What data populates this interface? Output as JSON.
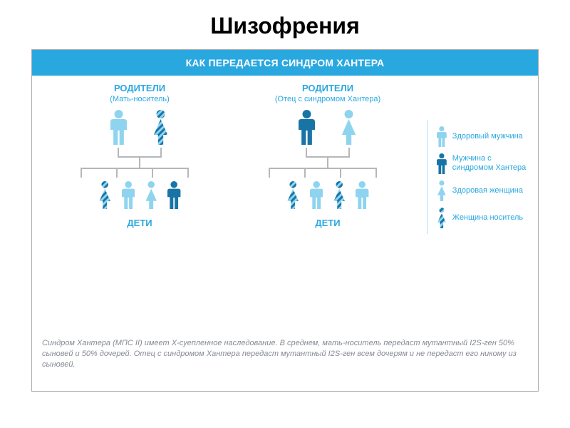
{
  "title": "Шизофрения",
  "banner": "КАК ПЕРЕДАЕТСЯ СИНДРОМ ХАНТЕРА",
  "colors": {
    "brand": "#29a8e0",
    "light": "#8fd4ef",
    "dark": "#1974a6",
    "gray": "#b5b7ba",
    "white": "#ffffff",
    "textgray": "#868b92"
  },
  "leftTree": {
    "parentsLabel": "РОДИТЕЛИ",
    "parentsSub": "(Мать-носитель)",
    "parents": [
      {
        "type": "male",
        "variant": "healthy",
        "size": 50
      },
      {
        "type": "female",
        "variant": "carrier",
        "size": 50
      }
    ],
    "children": [
      {
        "type": "female",
        "variant": "carrier",
        "size": 40
      },
      {
        "type": "male",
        "variant": "healthy",
        "size": 40
      },
      {
        "type": "female",
        "variant": "healthy",
        "size": 40
      },
      {
        "type": "male",
        "variant": "affected",
        "size": 40
      }
    ],
    "childrenLabel": "ДЕТИ"
  },
  "rightTree": {
    "parentsLabel": "РОДИТЕЛИ",
    "parentsSub": "(Отец с синдромом Хантера)",
    "parents": [
      {
        "type": "male",
        "variant": "affected",
        "size": 50
      },
      {
        "type": "female",
        "variant": "healthy",
        "size": 50
      }
    ],
    "children": [
      {
        "type": "female",
        "variant": "carrier",
        "size": 40
      },
      {
        "type": "male",
        "variant": "healthy",
        "size": 40
      },
      {
        "type": "female",
        "variant": "carrier",
        "size": 40
      },
      {
        "type": "male",
        "variant": "healthy",
        "size": 40
      }
    ],
    "childrenLabel": "ДЕТИ"
  },
  "legend": [
    {
      "type": "male",
      "variant": "healthy",
      "label": "Здоровый мужчина"
    },
    {
      "type": "male",
      "variant": "affected",
      "label": "Мужчина с синдромом Хантера"
    },
    {
      "type": "female",
      "variant": "healthy",
      "label": "Здоровая женщина"
    },
    {
      "type": "female",
      "variant": "carrier",
      "label": "Женщина носитель"
    }
  ],
  "legendIconSize": 30,
  "footnote": "Синдром Хантера (МПС II) имеет Х-суепленное наследование. В среднем, мать-носитель передаст мутантный I2S-ген 50% сыновей и 50% дочерей. Отец с синдромом Хантера передаст мутантный I2S-ген всем дочерям и не передаст его никому из сыновей."
}
